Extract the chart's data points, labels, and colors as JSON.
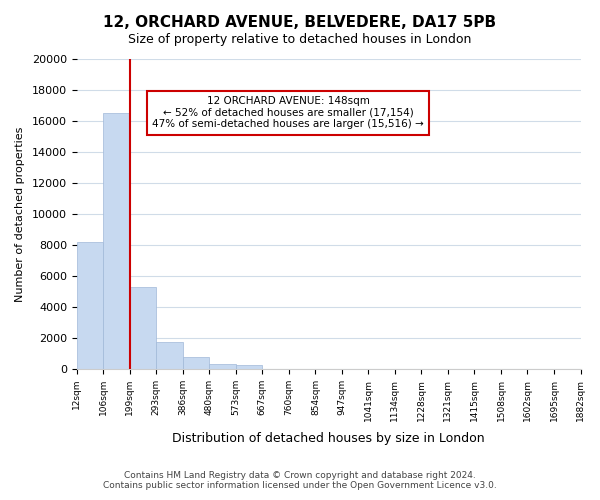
{
  "title": "12, ORCHARD AVENUE, BELVEDERE, DA17 5PB",
  "subtitle": "Size of property relative to detached houses in London",
  "xlabel": "Distribution of detached houses by size in London",
  "ylabel": "Number of detached properties",
  "bar_values": [
    8200,
    16500,
    5300,
    1750,
    800,
    300,
    270,
    0,
    0,
    0,
    0,
    0,
    0,
    0,
    0,
    0,
    0,
    0,
    0
  ],
  "bin_labels": [
    "12sqm",
    "106sqm",
    "199sqm",
    "293sqm",
    "386sqm",
    "480sqm",
    "573sqm",
    "667sqm",
    "760sqm",
    "854sqm",
    "947sqm",
    "1041sqm",
    "1134sqm",
    "1228sqm",
    "1321sqm",
    "1415sqm",
    "1508sqm",
    "1602sqm",
    "1695sqm",
    "1882sqm"
  ],
  "bar_color": "#c7d9f0",
  "bar_edge_color": "#a0b8d8",
  "property_line_x": 1,
  "property_line_color": "#cc0000",
  "ylim": [
    0,
    20000
  ],
  "yticks": [
    0,
    2000,
    4000,
    6000,
    8000,
    10000,
    12000,
    14000,
    16000,
    18000,
    20000
  ],
  "annotation_title": "12 ORCHARD AVENUE: 148sqm",
  "annotation_line1": "← 52% of detached houses are smaller (17,154)",
  "annotation_line2": "47% of semi-detached houses are larger (15,516) →",
  "annotation_box_color": "#ffffff",
  "annotation_box_edge": "#cc0000",
  "footer_line1": "Contains HM Land Registry data © Crown copyright and database right 2024.",
  "footer_line2": "Contains public sector information licensed under the Open Government Licence v3.0.",
  "background_color": "#ffffff",
  "grid_color": "#d0dce8"
}
